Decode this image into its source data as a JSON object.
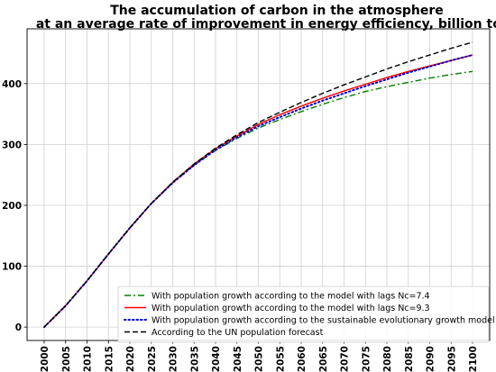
{
  "chart_data": {
    "type": "line",
    "title_lines": [
      "The accumulation of carbon in the atmosphere",
      "at an average rate of improvement in energy efficiency, billion tons"
    ],
    "xlabel": "",
    "ylabel": "",
    "xlim": [
      1996,
      2104
    ],
    "ylim": [
      -22,
      490
    ],
    "x_ticks": [
      2000,
      2005,
      2010,
      2015,
      2020,
      2025,
      2030,
      2035,
      2040,
      2045,
      2050,
      2055,
      2060,
      2065,
      2070,
      2075,
      2080,
      2085,
      2090,
      2095,
      2100
    ],
    "y_ticks": [
      0,
      100,
      200,
      300,
      400
    ],
    "grid": true,
    "legend_position": "bottom-right",
    "x": [
      2000,
      2005,
      2010,
      2015,
      2020,
      2025,
      2030,
      2035,
      2040,
      2045,
      2050,
      2055,
      2060,
      2065,
      2070,
      2075,
      2080,
      2085,
      2090,
      2095,
      2100
    ],
    "series": [
      {
        "name": "With population growth according to the model with lags Nc=7.4",
        "color": "#008000",
        "dash": "dashdot",
        "values": [
          0,
          35,
          76,
          120,
          163,
          203,
          237,
          266,
          290,
          310,
          327,
          341,
          354,
          366,
          377,
          387,
          395,
          402,
          409,
          415,
          420
        ]
      },
      {
        "name": "With population growth according to the model with lags Nc=9.3",
        "color": "#ff0000",
        "dash": "solid",
        "values": [
          0,
          35,
          76,
          120,
          163,
          203,
          238,
          268,
          293,
          314,
          333,
          349,
          363,
          376,
          388,
          399,
          410,
          420,
          429,
          438,
          447
        ]
      },
      {
        "name": "With population growth according to the sustainable evolutionary growth model",
        "color": "#0000cc",
        "dash": "dotted",
        "values": [
          0,
          35,
          76,
          120,
          163,
          203,
          237,
          266,
          291,
          312,
          330,
          345,
          359,
          372,
          384,
          396,
          407,
          418,
          428,
          438,
          447
        ]
      },
      {
        "name": "According to the UN population forecast",
        "color": "#000000",
        "dash": "dashed",
        "values": [
          0,
          35,
          76,
          120,
          163,
          203,
          238,
          268,
          294,
          316,
          336,
          353,
          369,
          384,
          398,
          411,
          424,
          436,
          447,
          458,
          468
        ]
      }
    ]
  }
}
